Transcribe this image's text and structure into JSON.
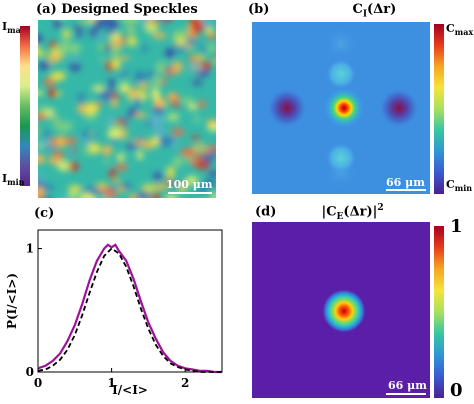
{
  "panels": {
    "a": {
      "title": "(a)  Designed Speckles",
      "cbar_top": "I",
      "cbar_top_sub": "max",
      "cbar_bottom": "I",
      "cbar_bottom_sub": "min",
      "scale_label": "100 μm"
    },
    "b": {
      "letter": "(b)",
      "title": "C",
      "title_sub": "I",
      "title_rest": "(Δr)",
      "cbar_top": "C",
      "cbar_top_sub": "max",
      "cbar_bottom": "C",
      "cbar_bottom_sub": "min",
      "scale_label": "66 μm"
    },
    "c": {
      "letter": "(c)"
    },
    "d": {
      "letter": "(d)",
      "title": "|C",
      "title_sub": "E",
      "title_rest": "(Δr)|",
      "title_sup": "2",
      "cbar_top": "1",
      "cbar_bottom": "0",
      "scale_label": "66 μm"
    }
  },
  "chart_data": {
    "type": "line",
    "xlabel": "I/<I>",
    "ylabel": "P(I/<I>)",
    "xlim": [
      0,
      2.5
    ],
    "ylim": [
      0,
      1.15
    ],
    "x_ticks": [
      "0",
      "1",
      "2"
    ],
    "y_ticks": [
      "0",
      "1"
    ],
    "series": [
      {
        "style": "solid",
        "color": "#a0119a",
        "x": [
          0,
          0.1,
          0.2,
          0.3,
          0.4,
          0.5,
          0.6,
          0.7,
          0.8,
          0.9,
          0.95,
          1.0,
          1.05,
          1.1,
          1.2,
          1.3,
          1.4,
          1.5,
          1.6,
          1.7,
          1.8,
          1.9,
          2.0,
          2.1,
          2.2,
          2.3,
          2.4,
          2.5
        ],
        "y": [
          0.03,
          0.05,
          0.09,
          0.15,
          0.25,
          0.38,
          0.55,
          0.74,
          0.9,
          1.0,
          1.03,
          1.01,
          1.03,
          0.98,
          0.9,
          0.75,
          0.57,
          0.4,
          0.27,
          0.16,
          0.09,
          0.05,
          0.03,
          0.02,
          0.01,
          0.01,
          0.0,
          0.0
        ]
      },
      {
        "style": "dashed",
        "color": "#000000",
        "x": [
          0,
          0.1,
          0.2,
          0.3,
          0.4,
          0.5,
          0.6,
          0.7,
          0.8,
          0.9,
          1.0,
          1.1,
          1.2,
          1.3,
          1.4,
          1.5,
          1.6,
          1.7,
          1.8,
          1.9,
          2.0,
          2.1,
          2.2,
          2.3,
          2.4,
          2.5
        ],
        "y": [
          0.01,
          0.02,
          0.05,
          0.1,
          0.18,
          0.3,
          0.46,
          0.64,
          0.81,
          0.94,
          1.0,
          0.96,
          0.85,
          0.69,
          0.51,
          0.35,
          0.22,
          0.13,
          0.07,
          0.04,
          0.02,
          0.01,
          0.0,
          0.0,
          0.0,
          0.0
        ]
      }
    ]
  }
}
